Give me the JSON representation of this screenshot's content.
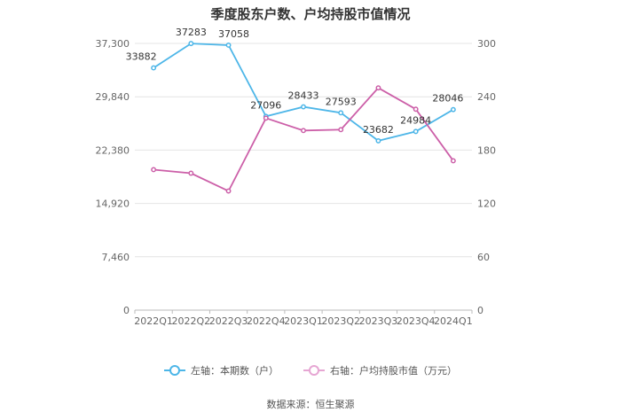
{
  "chart_data": {
    "type": "line",
    "title": "季度股东户数、户均持股市值情况",
    "categories": [
      "2022Q1",
      "2022Q2",
      "2022Q3",
      "2022Q4",
      "2023Q1",
      "2023Q2",
      "2023Q3",
      "2023Q4",
      "2024Q1"
    ],
    "left_axis": {
      "ticks": [
        "0",
        "7,460",
        "14,920",
        "22,380",
        "29,840",
        "37,300"
      ],
      "ylim": [
        0,
        37300
      ]
    },
    "right_axis": {
      "ticks": [
        "0",
        "60",
        "120",
        "180",
        "240",
        "300"
      ],
      "ylim": [
        0,
        300
      ]
    },
    "series": [
      {
        "name": "左轴：本期数（户）",
        "axis": "left",
        "color": "#4db6e8",
        "values": [
          33882,
          37283,
          37058,
          27096,
          28433,
          27593,
          23682,
          24984,
          28046
        ],
        "labels": [
          "33882",
          "37283",
          "37058",
          "27096",
          "28433",
          "27593",
          "23682",
          "24984",
          "28046"
        ]
      },
      {
        "name": "右轴：户均持股市值（万元）",
        "axis": "right",
        "color": "#cc5fa8",
        "values": [
          158,
          154,
          134,
          216,
          202,
          203,
          250,
          226,
          168
        ]
      }
    ],
    "grid": true,
    "legend_position": "bottom"
  },
  "source_text": "数据来源：恒生聚源"
}
